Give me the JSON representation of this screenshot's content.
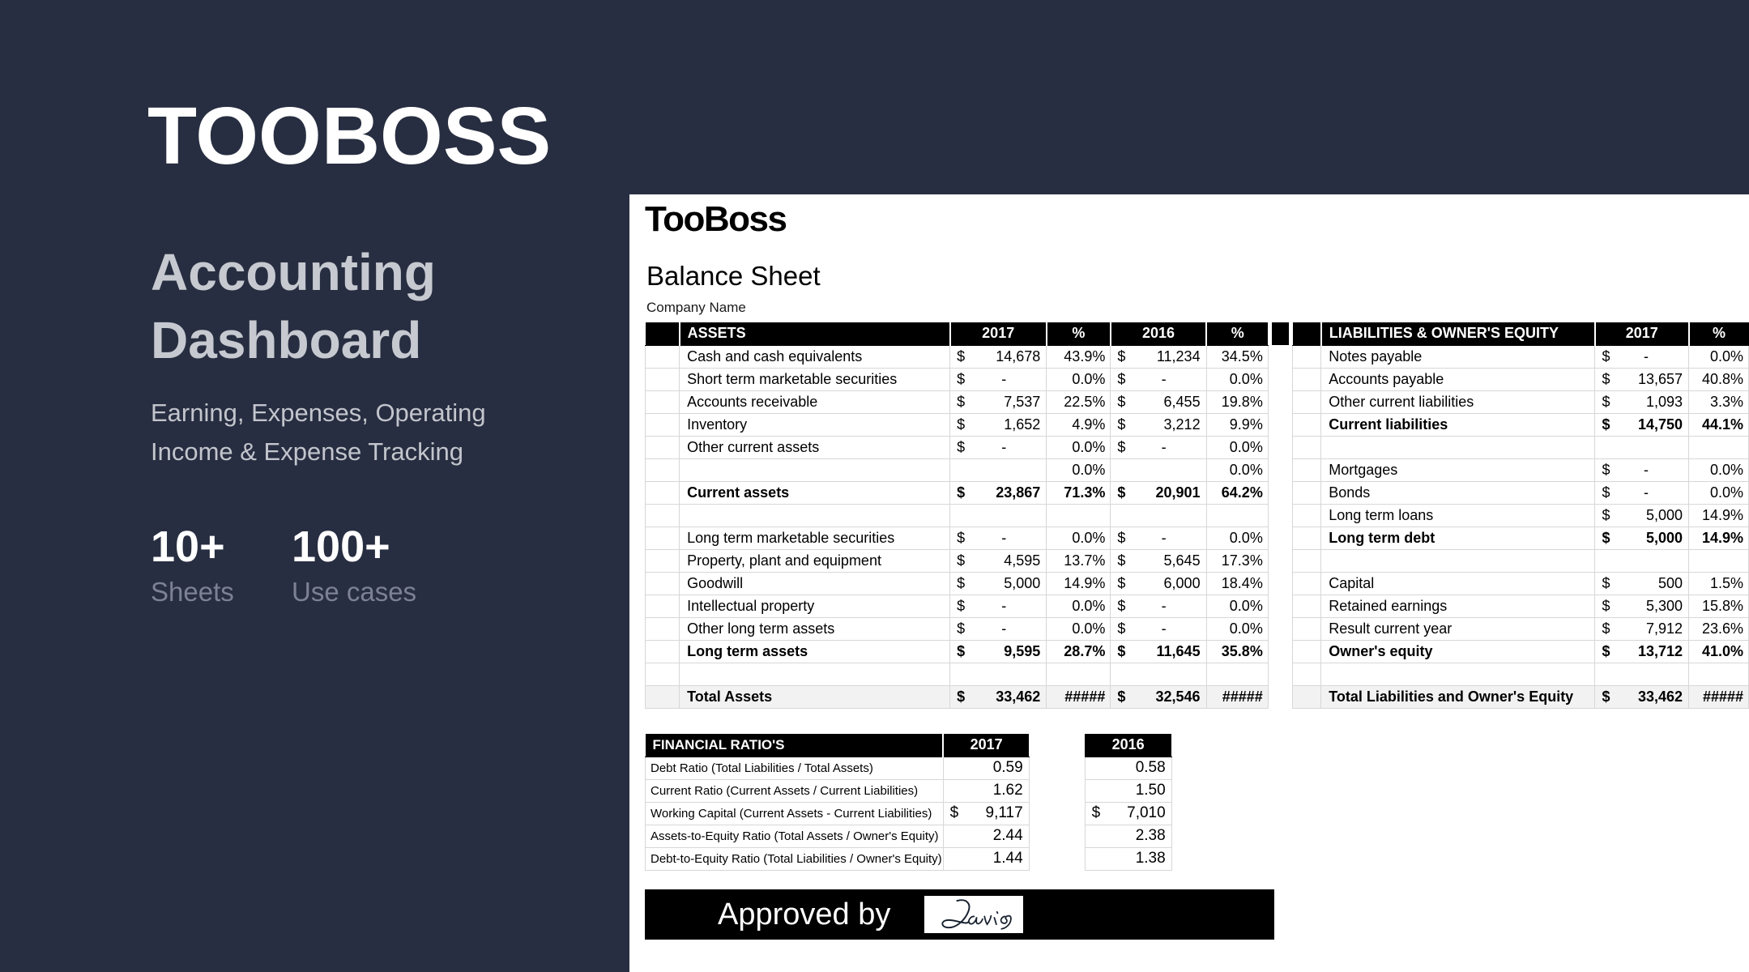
{
  "brand": {
    "logo": "TOOBOSS",
    "title_line1": "Accounting",
    "title_line2": "Dashboard",
    "subtitle_line1": "Earning, Expenses, Operating",
    "subtitle_line2": "Income & Expense Tracking",
    "stats": [
      {
        "value": "10+",
        "label": "Sheets"
      },
      {
        "value": "100+",
        "label": "Use cases"
      }
    ]
  },
  "colors": {
    "background_navy": "#282e41",
    "silver_text": "#c6c9d0",
    "muted_label": "#7c8293",
    "table_header_bg": "#000000",
    "total_row_bg": "#f2f2f2",
    "grid_border": "#d7d7d7"
  },
  "sheet": {
    "company": "TooBoss",
    "title": "Balance Sheet",
    "company_name_label": "Company Name",
    "assets_table": {
      "header": {
        "label": "ASSETS",
        "col1": "2017",
        "col2": "%",
        "col3": "2016",
        "col4": "%"
      },
      "rows": [
        {
          "label": "Cash and cash equivalents",
          "d1": "$",
          "v1": "14,678",
          "p1": "43.9%",
          "d2": "$",
          "v2": "11,234",
          "p2": "34.5%",
          "style": "normal"
        },
        {
          "label": "Short term marketable securities",
          "d1": "$",
          "v1": "-",
          "p1": "0.0%",
          "d2": "$",
          "v2": "-",
          "p2": "0.0%",
          "style": "normal"
        },
        {
          "label": "Accounts receivable",
          "d1": "$",
          "v1": "7,537",
          "p1": "22.5%",
          "d2": "$",
          "v2": "6,455",
          "p2": "19.8%",
          "style": "normal"
        },
        {
          "label": "Inventory",
          "d1": "$",
          "v1": "1,652",
          "p1": "4.9%",
          "d2": "$",
          "v2": "3,212",
          "p2": "9.9%",
          "style": "normal"
        },
        {
          "label": "Other current assets",
          "d1": "$",
          "v1": "-",
          "p1": "0.0%",
          "d2": "$",
          "v2": "-",
          "p2": "0.0%",
          "style": "normal"
        },
        {
          "label": "",
          "d1": "",
          "v1": "",
          "p1": "0.0%",
          "d2": "",
          "v2": "",
          "p2": "0.0%",
          "style": "normal"
        },
        {
          "label": "Current assets",
          "d1": "$",
          "v1": "23,867",
          "p1": "71.3%",
          "d2": "$",
          "v2": "20,901",
          "p2": "64.2%",
          "style": "bold"
        },
        {
          "label": "",
          "d1": "",
          "v1": "",
          "p1": "",
          "d2": "",
          "v2": "",
          "p2": "",
          "style": "normal"
        },
        {
          "label": "Long term marketable securities",
          "d1": "$",
          "v1": "-",
          "p1": "0.0%",
          "d2": "$",
          "v2": "-",
          "p2": "0.0%",
          "style": "normal"
        },
        {
          "label": "Property, plant and equipment",
          "d1": "$",
          "v1": "4,595",
          "p1": "13.7%",
          "d2": "$",
          "v2": "5,645",
          "p2": "17.3%",
          "style": "normal"
        },
        {
          "label": "Goodwill",
          "d1": "$",
          "v1": "5,000",
          "p1": "14.9%",
          "d2": "$",
          "v2": "6,000",
          "p2": "18.4%",
          "style": "normal"
        },
        {
          "label": "Intellectual property",
          "d1": "$",
          "v1": "-",
          "p1": "0.0%",
          "d2": "$",
          "v2": "-",
          "p2": "0.0%",
          "style": "normal"
        },
        {
          "label": "Other long term assets",
          "d1": "$",
          "v1": "-",
          "p1": "0.0%",
          "d2": "$",
          "v2": "-",
          "p2": "0.0%",
          "style": "normal"
        },
        {
          "label": "Long term assets",
          "d1": "$",
          "v1": "9,595",
          "p1": "28.7%",
          "d2": "$",
          "v2": "11,645",
          "p2": "35.8%",
          "style": "bold"
        },
        {
          "label": "",
          "d1": "",
          "v1": "",
          "p1": "",
          "d2": "",
          "v2": "",
          "p2": "",
          "style": "normal"
        },
        {
          "label": "Total Assets",
          "d1": "$",
          "v1": "33,462",
          "p1": "#####",
          "d2": "$",
          "v2": "32,546",
          "p2": "#####",
          "style": "total"
        }
      ]
    },
    "liabilities_table": {
      "header": {
        "label": "LIABILITIES & OWNER'S EQUITY",
        "col1": "2017",
        "col2": "%"
      },
      "rows": [
        {
          "label": "Notes payable",
          "d1": "$",
          "v1": "-",
          "p1": "0.0%",
          "style": "normal"
        },
        {
          "label": "Accounts payable",
          "d1": "$",
          "v1": "13,657",
          "p1": "40.8%",
          "style": "normal"
        },
        {
          "label": "Other current liabilities",
          "d1": "$",
          "v1": "1,093",
          "p1": "3.3%",
          "style": "normal"
        },
        {
          "label": "Current liabilities",
          "d1": "$",
          "v1": "14,750",
          "p1": "44.1%",
          "style": "bold"
        },
        {
          "label": "",
          "d1": "",
          "v1": "",
          "p1": "",
          "style": "normal"
        },
        {
          "label": "Mortgages",
          "d1": "$",
          "v1": "-",
          "p1": "0.0%",
          "style": "normal"
        },
        {
          "label": "Bonds",
          "d1": "$",
          "v1": "-",
          "p1": "0.0%",
          "style": "normal"
        },
        {
          "label": "Long term loans",
          "d1": "$",
          "v1": "5,000",
          "p1": "14.9%",
          "style": "normal"
        },
        {
          "label": "Long term debt",
          "d1": "$",
          "v1": "5,000",
          "p1": "14.9%",
          "style": "bold"
        },
        {
          "label": "",
          "d1": "",
          "v1": "",
          "p1": "",
          "style": "normal"
        },
        {
          "label": "Capital",
          "d1": "$",
          "v1": "500",
          "p1": "1.5%",
          "style": "normal"
        },
        {
          "label": "Retained earnings",
          "d1": "$",
          "v1": "5,300",
          "p1": "15.8%",
          "style": "normal"
        },
        {
          "label": "Result current year",
          "d1": "$",
          "v1": "7,912",
          "p1": "23.6%",
          "style": "normal"
        },
        {
          "label": "Owner's equity",
          "d1": "$",
          "v1": "13,712",
          "p1": "41.0%",
          "style": "bold"
        },
        {
          "label": "",
          "d1": "",
          "v1": "",
          "p1": "",
          "style": "normal"
        },
        {
          "label": "Total Liabilities and Owner's Equity",
          "d1": "$",
          "v1": "33,462",
          "p1": "#####",
          "style": "total"
        }
      ]
    },
    "ratios_table": {
      "header_label": "FINANCIAL RATIO'S",
      "col_2017": "2017",
      "col_2016": "2016",
      "rows": [
        {
          "label": "Debt Ratio (Total Liabilities / Total Assets)",
          "d1": "",
          "v1": "0.59",
          "d2": "",
          "v2": "0.58"
        },
        {
          "label": "Current Ratio (Current Assets / Current Liabilities)",
          "d1": "",
          "v1": "1.62",
          "d2": "",
          "v2": "1.50"
        },
        {
          "label": "Working Capital (Current Assets - Current Liabilities)",
          "d1": "$",
          "v1": "9,117",
          "d2": "$",
          "v2": "7,010"
        },
        {
          "label": "Assets-to-Equity Ratio (Total Assets / Owner's Equity)",
          "d1": "",
          "v1": "2.44",
          "d2": "",
          "v2": "2.38"
        },
        {
          "label": "Debt-to-Equity Ratio (Total Liabilities / Owner's Equity)",
          "d1": "",
          "v1": "1.44",
          "d2": "",
          "v2": "1.38"
        }
      ]
    },
    "approval": {
      "label": "Approved by",
      "signature_name": "Davis"
    }
  }
}
